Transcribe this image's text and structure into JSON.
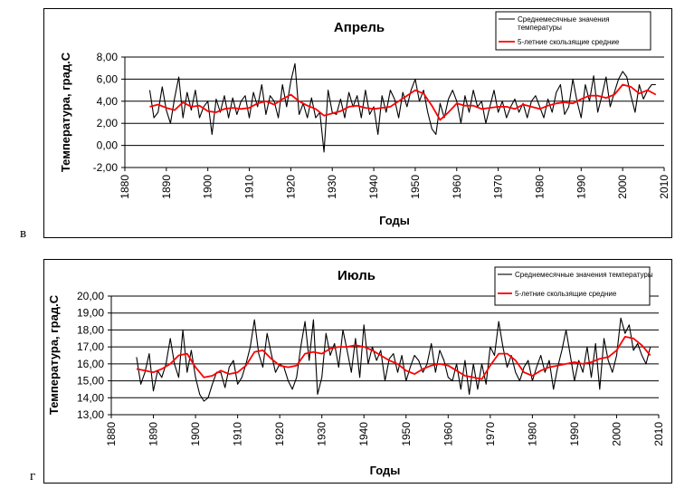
{
  "panels": {
    "top_letter": "в",
    "bottom_letter": "г"
  },
  "chart_data": [
    {
      "type": "line",
      "title": "Апрель",
      "xlabel": "Годы",
      "ylabel": "Температура, град.С",
      "xlim": [
        1880,
        2010
      ],
      "ylim": [
        -2,
        8
      ],
      "xticks": [
        "1880",
        "1890",
        "1900",
        "1910",
        "1920",
        "1930",
        "1940",
        "1950",
        "1960",
        "1970",
        "1980",
        "1990",
        "2000",
        "2010"
      ],
      "yticks": [
        "-2,00",
        "0,00",
        "2,00",
        "4,00",
        "6,00",
        "8,00"
      ],
      "ytick_values": [
        -2,
        0,
        2,
        4,
        6,
        8
      ],
      "grid": "horizontal",
      "legend_position": "top-right",
      "series": [
        {
          "name": "Среднемесячные значения температуры",
          "color": "#000000",
          "x": [
            1886,
            1887,
            1888,
            1889,
            1890,
            1891,
            1892,
            1893,
            1894,
            1895,
            1896,
            1897,
            1898,
            1899,
            1900,
            1901,
            1902,
            1903,
            1904,
            1905,
            1906,
            1907,
            1908,
            1909,
            1910,
            1911,
            1912,
            1913,
            1914,
            1915,
            1916,
            1917,
            1918,
            1919,
            1920,
            1921,
            1922,
            1923,
            1924,
            1925,
            1926,
            1927,
            1928,
            1929,
            1930,
            1931,
            1932,
            1933,
            1934,
            1935,
            1936,
            1937,
            1938,
            1939,
            1940,
            1941,
            1942,
            1943,
            1944,
            1945,
            1946,
            1947,
            1948,
            1949,
            1950,
            1951,
            1952,
            1953,
            1954,
            1955,
            1956,
            1957,
            1958,
            1959,
            1960,
            1961,
            1962,
            1963,
            1964,
            1965,
            1966,
            1967,
            1968,
            1969,
            1970,
            1971,
            1972,
            1973,
            1974,
            1975,
            1976,
            1977,
            1978,
            1979,
            1980,
            1981,
            1982,
            1983,
            1984,
            1985,
            1986,
            1987,
            1988,
            1989,
            1990,
            1991,
            1992,
            1993,
            1994,
            1995,
            1996,
            1997,
            1998,
            1999,
            2000,
            2001,
            2002,
            2003,
            2004,
            2005,
            2006,
            2007,
            2008
          ],
          "values": [
            5.0,
            2.5,
            3.0,
            5.3,
            3.2,
            2.0,
            4.3,
            6.2,
            2.5,
            4.8,
            3.2,
            5.0,
            2.5,
            3.5,
            4.0,
            1.0,
            4.2,
            3.0,
            4.5,
            2.5,
            4.3,
            2.8,
            4.0,
            4.5,
            2.5,
            4.8,
            3.5,
            5.5,
            2.8,
            4.5,
            4.0,
            2.5,
            5.5,
            3.5,
            5.8,
            7.4,
            2.8,
            3.8,
            2.5,
            4.3,
            2.5,
            3.0,
            -0.6,
            5.0,
            3.0,
            2.8,
            4.2,
            2.5,
            4.8,
            3.5,
            4.5,
            2.5,
            5.0,
            2.8,
            3.5,
            1.0,
            4.5,
            3.0,
            5.0,
            4.2,
            2.5,
            4.8,
            3.5,
            5.0,
            6.0,
            4.0,
            5.0,
            3.0,
            1.5,
            1.0,
            3.8,
            2.5,
            4.2,
            5.0,
            4.0,
            2.0,
            4.5,
            3.0,
            5.0,
            3.5,
            4.0,
            2.0,
            3.5,
            5.0,
            3.0,
            4.0,
            2.5,
            3.5,
            4.2,
            3.0,
            3.8,
            2.5,
            4.0,
            4.5,
            3.5,
            2.5,
            4.2,
            3.0,
            4.8,
            5.5,
            2.8,
            3.5,
            6.0,
            4.0,
            2.5,
            5.5,
            4.0,
            6.3,
            3.0,
            4.5,
            6.2,
            3.5,
            4.8,
            6.0,
            6.7,
            6.2,
            4.5,
            3.0,
            5.5,
            4.2,
            5.0,
            5.5,
            5.5
          ]
        },
        {
          "name": "5-летние скользящие средние",
          "color": "#ff0000",
          "x": [
            1886,
            1888,
            1890,
            1892,
            1894,
            1896,
            1898,
            1900,
            1902,
            1904,
            1906,
            1908,
            1910,
            1912,
            1914,
            1916,
            1918,
            1920,
            1922,
            1924,
            1926,
            1928,
            1930,
            1932,
            1934,
            1936,
            1938,
            1940,
            1942,
            1944,
            1946,
            1948,
            1950,
            1952,
            1954,
            1956,
            1958,
            1960,
            1962,
            1964,
            1966,
            1968,
            1970,
            1972,
            1974,
            1976,
            1978,
            1980,
            1982,
            1984,
            1986,
            1988,
            1990,
            1992,
            1994,
            1996,
            1998,
            2000,
            2002,
            2004,
            2006,
            2008
          ],
          "values": [
            3.5,
            3.7,
            3.4,
            3.2,
            3.9,
            3.5,
            3.6,
            3.1,
            3.0,
            3.3,
            3.4,
            3.3,
            3.4,
            3.8,
            4.0,
            3.7,
            4.2,
            4.6,
            4.0,
            3.6,
            3.3,
            2.7,
            2.9,
            3.1,
            3.5,
            3.6,
            3.4,
            3.3,
            3.4,
            3.5,
            4.0,
            4.5,
            5.0,
            4.7,
            3.6,
            2.3,
            3.0,
            3.8,
            3.6,
            3.6,
            3.3,
            3.4,
            3.5,
            3.5,
            3.3,
            3.7,
            3.5,
            3.3,
            3.6,
            3.8,
            3.9,
            3.8,
            4.2,
            4.5,
            4.5,
            4.3,
            4.6,
            5.5,
            5.3,
            4.7,
            5.0,
            4.6
          ]
        }
      ]
    },
    {
      "type": "line",
      "title": "Июль",
      "xlabel": "Годы",
      "ylabel": "Температура, град.С",
      "xlim": [
        1880,
        2010
      ],
      "ylim": [
        13,
        20
      ],
      "xticks": [
        "1880",
        "1890",
        "1900",
        "1910",
        "1920",
        "1930",
        "1940",
        "1950",
        "1960",
        "1970",
        "1980",
        "1990",
        "2000",
        "2010"
      ],
      "yticks": [
        "13,00",
        "14,00",
        "15,00",
        "16,00",
        "17,00",
        "18,00",
        "19,00",
        "20,00"
      ],
      "ytick_values": [
        13,
        14,
        15,
        16,
        17,
        18,
        19,
        20
      ],
      "grid": "horizontal",
      "legend_position": "top-right",
      "series": [
        {
          "name": "Среднемесячные значения температуры",
          "color": "#000000",
          "x": [
            1886,
            1887,
            1888,
            1889,
            1890,
            1891,
            1892,
            1893,
            1894,
            1895,
            1896,
            1897,
            1898,
            1899,
            1900,
            1901,
            1902,
            1903,
            1904,
            1905,
            1906,
            1907,
            1908,
            1909,
            1910,
            1911,
            1912,
            1913,
            1914,
            1915,
            1916,
            1917,
            1918,
            1919,
            1920,
            1921,
            1922,
            1923,
            1924,
            1925,
            1926,
            1927,
            1928,
            1929,
            1930,
            1931,
            1932,
            1933,
            1934,
            1935,
            1936,
            1937,
            1938,
            1939,
            1940,
            1941,
            1942,
            1943,
            1944,
            1945,
            1946,
            1947,
            1948,
            1949,
            1950,
            1951,
            1952,
            1953,
            1954,
            1955,
            1956,
            1957,
            1958,
            1959,
            1960,
            1961,
            1962,
            1963,
            1964,
            1965,
            1966,
            1967,
            1968,
            1969,
            1970,
            1971,
            1972,
            1973,
            1974,
            1975,
            1976,
            1977,
            1978,
            1979,
            1980,
            1981,
            1982,
            1983,
            1984,
            1985,
            1986,
            1987,
            1988,
            1989,
            1990,
            1991,
            1992,
            1993,
            1994,
            1995,
            1996,
            1997,
            1998,
            1999,
            2000,
            2001,
            2002,
            2003,
            2004,
            2005,
            2006,
            2007,
            2008
          ],
          "values": [
            16.4,
            14.8,
            15.5,
            16.6,
            14.4,
            15.6,
            15.2,
            16.0,
            17.5,
            16.0,
            15.2,
            18.0,
            15.5,
            16.8,
            15.2,
            14.2,
            13.8,
            14.0,
            14.8,
            15.5,
            15.5,
            14.6,
            15.8,
            16.2,
            14.8,
            15.2,
            16.0,
            17.0,
            18.6,
            16.6,
            15.8,
            17.8,
            16.6,
            15.5,
            16.0,
            15.8,
            15.0,
            14.5,
            15.2,
            17.0,
            18.5,
            16.2,
            18.6,
            14.2,
            15.2,
            17.8,
            16.5,
            17.2,
            15.8,
            18.0,
            16.8,
            15.5,
            17.5,
            15.2,
            18.3,
            16.0,
            17.0,
            16.2,
            16.8,
            15.0,
            16.3,
            16.6,
            15.5,
            16.5,
            15.0,
            15.8,
            16.5,
            16.2,
            15.5,
            16.0,
            17.2,
            15.5,
            16.8,
            16.2,
            15.2,
            15.0,
            16.0,
            14.5,
            16.2,
            14.2,
            16.0,
            14.5,
            16.0,
            14.8,
            17.0,
            16.5,
            18.5,
            17.0,
            15.8,
            16.5,
            15.5,
            15.0,
            15.8,
            16.2,
            15.0,
            15.8,
            16.5,
            15.5,
            16.2,
            14.5,
            15.8,
            16.8,
            18.0,
            16.5,
            15.0,
            16.2,
            15.5,
            17.0,
            15.2,
            17.2,
            14.5,
            17.5,
            16.2,
            15.5,
            16.5,
            18.7,
            17.8,
            18.3,
            16.8,
            17.2,
            16.5,
            16.0,
            17.0
          ]
        },
        {
          "name": "5-летние скользящие средние",
          "color": "#ff0000",
          "x": [
            1886,
            1888,
            1890,
            1892,
            1894,
            1896,
            1898,
            1900,
            1902,
            1904,
            1906,
            1908,
            1910,
            1912,
            1914,
            1916,
            1918,
            1920,
            1922,
            1924,
            1926,
            1928,
            1930,
            1932,
            1934,
            1936,
            1938,
            1940,
            1942,
            1944,
            1946,
            1948,
            1950,
            1952,
            1954,
            1956,
            1958,
            1960,
            1962,
            1964,
            1966,
            1968,
            1970,
            1972,
            1974,
            1976,
            1978,
            1980,
            1982,
            1984,
            1986,
            1988,
            1990,
            1992,
            1994,
            1996,
            1998,
            2000,
            2002,
            2004,
            2006,
            2008
          ],
          "values": [
            15.7,
            15.6,
            15.5,
            15.7,
            16.0,
            16.5,
            16.6,
            15.8,
            15.2,
            15.3,
            15.6,
            15.4,
            15.5,
            15.9,
            16.7,
            16.8,
            16.3,
            15.9,
            15.8,
            15.9,
            16.6,
            16.7,
            16.6,
            16.9,
            17.0,
            17.0,
            17.1,
            17.0,
            16.8,
            16.5,
            16.2,
            16.0,
            15.6,
            15.4,
            15.7,
            15.9,
            16.0,
            15.9,
            15.6,
            15.3,
            15.2,
            15.1,
            15.9,
            16.6,
            16.6,
            16.2,
            15.5,
            15.3,
            15.6,
            15.8,
            15.9,
            16.0,
            16.1,
            16.0,
            16.1,
            16.3,
            16.4,
            16.8,
            17.6,
            17.5,
            17.1,
            16.5
          ]
        }
      ]
    }
  ]
}
